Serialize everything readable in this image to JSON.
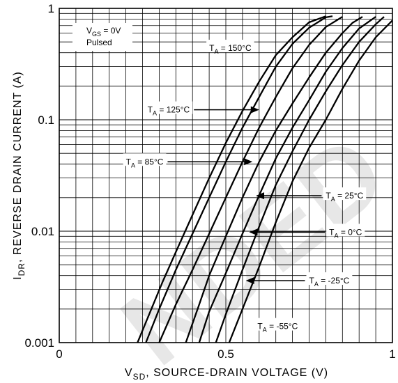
{
  "chart_data": {
    "type": "line",
    "xlabel": {
      "main": "V",
      "sub": "SD",
      "rest": ", SOURCE-DRAIN VOLTAGE (V)"
    },
    "ylabel": {
      "main": "I",
      "sub": "DR",
      "rest": ", REVERSE DRAIN CURRENT (A)"
    },
    "xlim": [
      0,
      1
    ],
    "ylim": [
      0.001,
      1
    ],
    "yscale": "log",
    "grid": true,
    "x_ticks": [
      {
        "value": 0,
        "label": "0"
      },
      {
        "value": 0.5,
        "label": "0.5"
      },
      {
        "value": 1,
        "label": "1"
      }
    ],
    "y_ticks": [
      {
        "value": 0.001,
        "label": "0.001"
      },
      {
        "value": 0.01,
        "label": "0.01"
      },
      {
        "value": 0.1,
        "label": "0.1"
      },
      {
        "value": 1,
        "label": "1"
      }
    ],
    "conditions": {
      "main": "V",
      "sub": "GS",
      "rest": " = 0V",
      "line2": "Pulsed"
    },
    "watermark": "NDED",
    "series": [
      {
        "name": "TA = 150°C",
        "label_prefix": "T",
        "label_sub": "A",
        "label_rest": " = 150°C",
        "x": [
          0.235,
          0.27,
          0.31,
          0.35,
          0.4,
          0.45,
          0.5,
          0.55,
          0.6,
          0.65,
          0.7,
          0.75,
          0.8
        ],
        "y": [
          0.001,
          0.0018,
          0.0035,
          0.0065,
          0.014,
          0.03,
          0.062,
          0.12,
          0.22,
          0.38,
          0.55,
          0.75,
          0.85
        ]
      },
      {
        "name": "TA = 125°C",
        "label_prefix": "T",
        "label_sub": "A",
        "label_rest": " = 125°C",
        "x": [
          0.26,
          0.3,
          0.35,
          0.4,
          0.45,
          0.5,
          0.55,
          0.6,
          0.65,
          0.7,
          0.75,
          0.8,
          0.82
        ],
        "y": [
          0.001,
          0.002,
          0.0045,
          0.0095,
          0.02,
          0.042,
          0.085,
          0.16,
          0.3,
          0.48,
          0.67,
          0.83,
          0.85
        ]
      },
      {
        "name": "TA = 85°C",
        "label_prefix": "T",
        "label_sub": "A",
        "label_rest": " = 85°C",
        "x": [
          0.3,
          0.35,
          0.4,
          0.45,
          0.5,
          0.55,
          0.6,
          0.65,
          0.7,
          0.75,
          0.8,
          0.85
        ],
        "y": [
          0.001,
          0.0022,
          0.0045,
          0.0095,
          0.02,
          0.042,
          0.085,
          0.16,
          0.29,
          0.47,
          0.68,
          0.84
        ]
      },
      {
        "name": "TA = 25°C",
        "label_prefix": "T",
        "label_sub": "A",
        "label_rest": " = 25°C",
        "x": [
          0.38,
          0.42,
          0.45,
          0.5,
          0.55,
          0.6,
          0.65,
          0.7,
          0.75,
          0.8,
          0.85,
          0.88,
          0.91
        ],
        "y": [
          0.001,
          0.0022,
          0.004,
          0.009,
          0.02,
          0.042,
          0.08,
          0.14,
          0.24,
          0.4,
          0.6,
          0.74,
          0.84
        ]
      },
      {
        "name": "TA = 0°C",
        "label_prefix": "T",
        "label_sub": "A",
        "label_rest": " = 0°C",
        "x": [
          0.42,
          0.45,
          0.5,
          0.55,
          0.6,
          0.65,
          0.7,
          0.75,
          0.8,
          0.85,
          0.9,
          0.95
        ],
        "y": [
          0.001,
          0.0019,
          0.0042,
          0.0095,
          0.021,
          0.045,
          0.085,
          0.15,
          0.27,
          0.44,
          0.66,
          0.84
        ]
      },
      {
        "name": "TA = -25°C",
        "label_prefix": "T",
        "label_sub": "A",
        "label_rest": " = -25°C",
        "x": [
          0.47,
          0.5,
          0.55,
          0.6,
          0.65,
          0.7,
          0.75,
          0.8,
          0.85,
          0.9,
          0.95,
          0.975
        ],
        "y": [
          0.001,
          0.0018,
          0.0045,
          0.011,
          0.026,
          0.052,
          0.1,
          0.18,
          0.31,
          0.5,
          0.72,
          0.84
        ]
      },
      {
        "name": "TA = -55°C",
        "label_prefix": "T",
        "label_sub": "A",
        "label_rest": " = -55°C",
        "x": [
          0.51,
          0.55,
          0.6,
          0.65,
          0.7,
          0.75,
          0.8,
          0.85,
          0.9,
          0.95,
          1.0
        ],
        "y": [
          0.001,
          0.002,
          0.0048,
          0.012,
          0.028,
          0.056,
          0.1,
          0.19,
          0.34,
          0.55,
          0.78
        ]
      }
    ],
    "annotations": [
      {
        "series": 0,
        "text_x": 0.45,
        "text_y": 0.44,
        "arrow": false
      },
      {
        "series": 1,
        "text_x": 0.265,
        "text_y": 0.123,
        "arrow_to": [
          0.6,
          0.123
        ]
      },
      {
        "series": 2,
        "text_x": 0.2,
        "text_y": 0.042,
        "arrow_to": [
          0.58,
          0.042
        ]
      },
      {
        "series": 3,
        "text_x": 0.8,
        "text_y": 0.0208,
        "arrow_to": [
          0.59,
          0.0208
        ]
      },
      {
        "series": 4,
        "text_x": 0.81,
        "text_y": 0.0098,
        "arrow_to": [
          0.57,
          0.0098
        ]
      },
      {
        "series": 5,
        "text_x": 0.75,
        "text_y": 0.0036,
        "arrow_to": [
          0.56,
          0.0036
        ]
      },
      {
        "series": 6,
        "text_x": 0.595,
        "text_y": 0.0014,
        "arrow": false
      }
    ]
  }
}
